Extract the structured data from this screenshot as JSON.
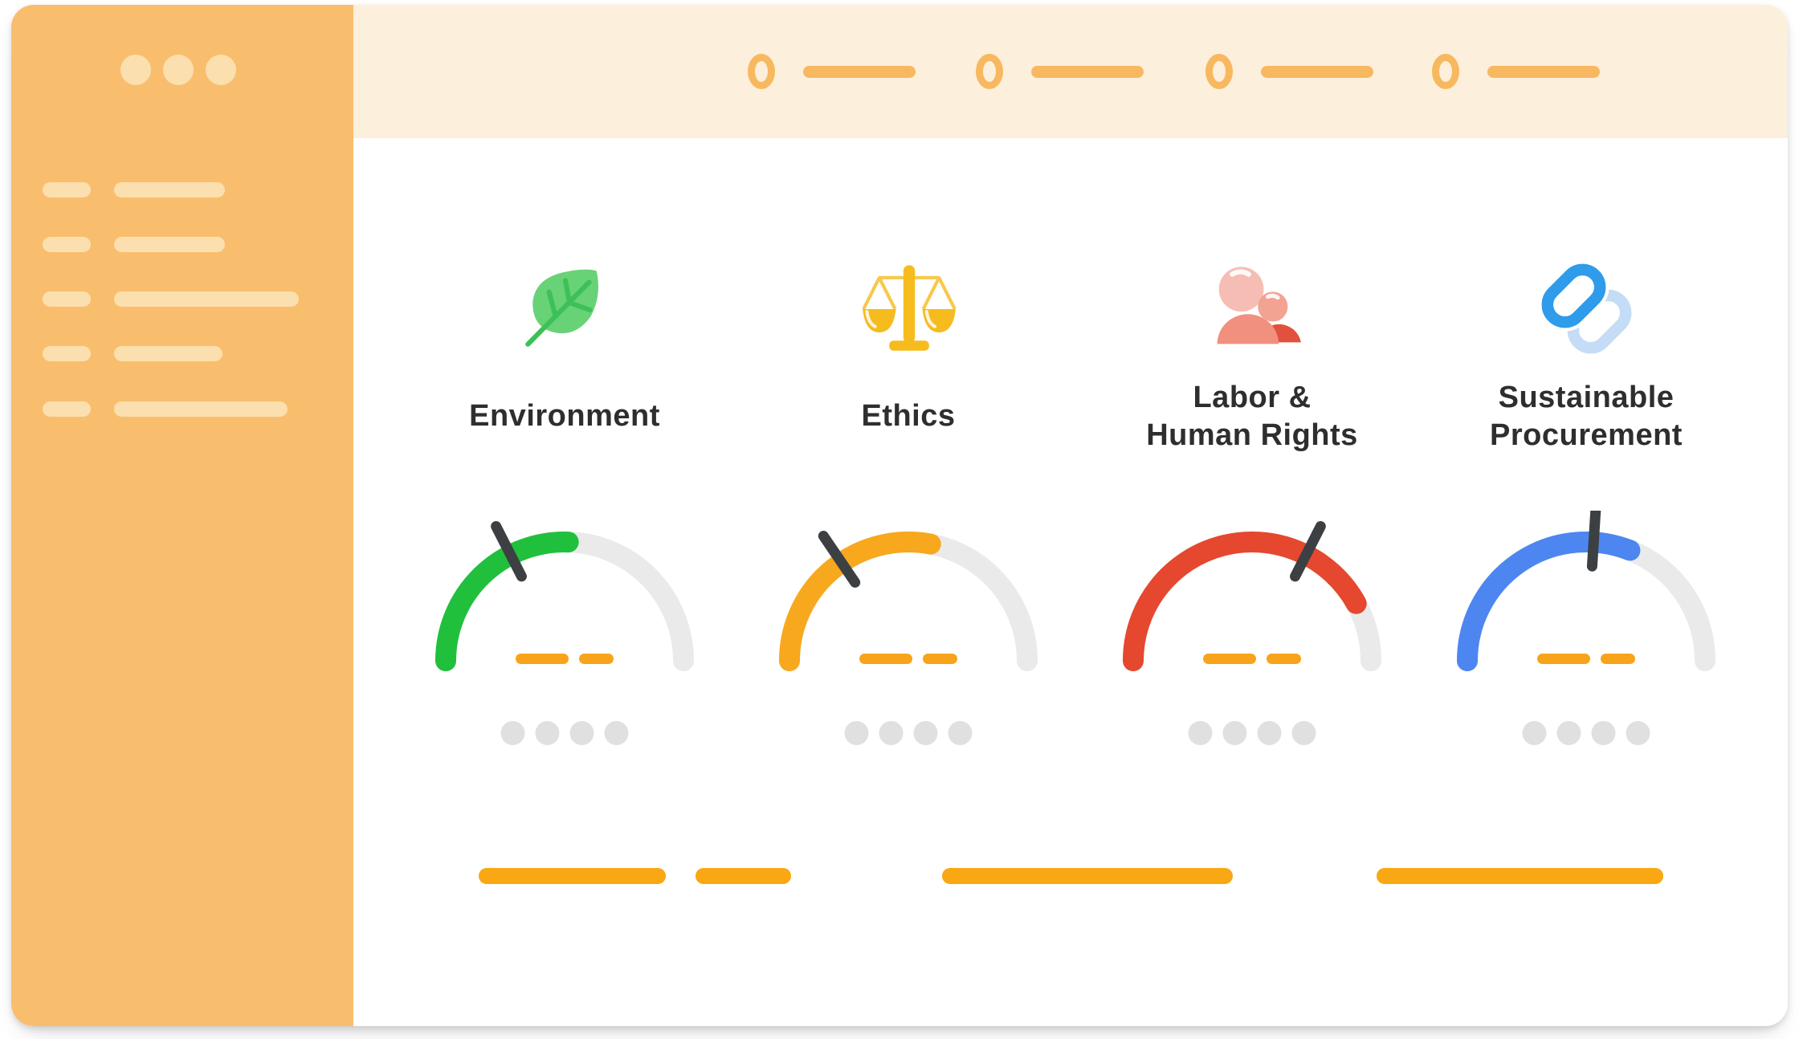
{
  "app": {
    "description": "Sustainability scorecard dashboard mockup with four themed gauges"
  },
  "colors": {
    "sidebar": "#F9BE6D",
    "sidebar_placeholder": "#FCDFAE",
    "header_band": "#FCEFDC",
    "stepper_orange": "#F8B860",
    "gauge_track_gray": "#EAEAEA",
    "needle_dark": "#3D4043",
    "score_dash_orange": "#F7A41A",
    "dot_gray": "#E0E0E0",
    "bottom_bar_orange": "#F9A713",
    "label_text": "#2E2E2E"
  },
  "sidebar": {
    "window_dots_count": 3,
    "menu_placeholder_rows": 5
  },
  "header": {
    "progress_steps_count": 4
  },
  "categories": [
    {
      "id": "environment",
      "label_line1": "Environment",
      "icon": "leaf-icon",
      "color": "#21C03C",
      "gauge_fill_percent": 51,
      "needle_percent": 35
    },
    {
      "id": "ethics",
      "label_line1": "Ethics",
      "icon": "scales-icon",
      "color": "#F7A81D",
      "gauge_fill_percent": 56,
      "needle_percent": 31
    },
    {
      "id": "labor-human-rights",
      "label_line1": "Labor &",
      "label_line2": "Human Rights",
      "icon": "people-icon",
      "color": "#E5482F",
      "gauge_fill_percent": 84,
      "needle_percent": 65
    },
    {
      "id": "sustainable-procurement",
      "label_line1": "Sustainable",
      "label_line2": "Procurement",
      "icon": "chain-link-icon",
      "color": "#4D86F0",
      "gauge_fill_percent": 62,
      "needle_percent": 52
    }
  ],
  "chart_data": [
    {
      "type": "gauge",
      "category": "Environment",
      "color": "#21C03C",
      "arc_fill_percent": 51,
      "needle_percent": 35,
      "numeric_value_shown": false
    },
    {
      "type": "gauge",
      "category": "Ethics",
      "color": "#F7A81D",
      "arc_fill_percent": 56,
      "needle_percent": 31,
      "numeric_value_shown": false
    },
    {
      "type": "gauge",
      "category": "Labor & Human Rights",
      "color": "#E5482F",
      "arc_fill_percent": 84,
      "needle_percent": 65,
      "numeric_value_shown": false
    },
    {
      "type": "gauge",
      "category": "Sustainable Procurement",
      "color": "#4D86F0",
      "arc_fill_percent": 62,
      "needle_percent": 52,
      "numeric_value_shown": false
    }
  ]
}
